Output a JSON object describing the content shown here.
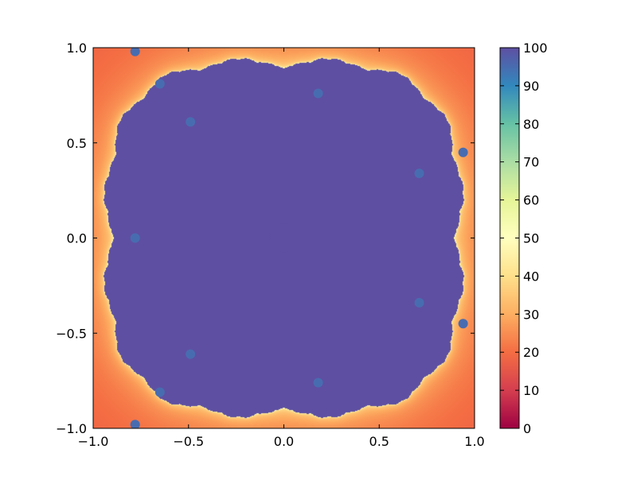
{
  "chart_data": {
    "type": "heatmap",
    "title": "",
    "xlabel": "",
    "ylabel": "",
    "xlim": [
      -1.0,
      1.0
    ],
    "ylim": [
      -1.0,
      1.0
    ],
    "xticks": [
      -1.0,
      -0.5,
      0.0,
      0.5,
      1.0
    ],
    "yticks": [
      -1.0,
      -0.5,
      0.0,
      0.5,
      1.0
    ],
    "xtick_labels": [
      "−1.0",
      "−0.5",
      "0.0",
      "0.5",
      "1.0"
    ],
    "ytick_labels": [
      "−1.0",
      "−0.5",
      "0.0",
      "0.5",
      "1.0"
    ],
    "grid": false,
    "colormap": "Spectral",
    "colorbar": {
      "min": 0,
      "max": 100,
      "ticks": [
        0,
        10,
        20,
        30,
        40,
        50,
        60,
        70,
        80,
        90,
        100
      ],
      "tick_labels": [
        "0",
        "10",
        "20",
        "30",
        "40",
        "50",
        "60",
        "70",
        "80",
        "90",
        "100"
      ],
      "colors": [
        "#9e0142",
        "#d53e4f",
        "#f46d43",
        "#fdae61",
        "#fee08b",
        "#ffffbf",
        "#e6f598",
        "#abdda4",
        "#66c2a5",
        "#3288bd",
        "#5e4fa2"
      ]
    },
    "description_values": {
      "background_iteration_level": 8,
      "spiral_centers": [
        {
          "x": 0.0,
          "y": 0.0,
          "value": 100
        },
        {
          "x": 0.71,
          "y": 0.34,
          "value": 95
        },
        {
          "x": 0.71,
          "y": -0.34,
          "value": 95
        },
        {
          "x": 0.18,
          "y": 0.76,
          "value": 95
        },
        {
          "x": 0.18,
          "y": -0.76,
          "value": 95
        },
        {
          "x": -0.49,
          "y": 0.61,
          "value": 95
        },
        {
          "x": -0.49,
          "y": -0.61,
          "value": 95
        },
        {
          "x": -0.78,
          "y": 0.0,
          "value": 95
        },
        {
          "x": 0.94,
          "y": 0.45,
          "value": 95
        },
        {
          "x": 0.94,
          "y": -0.45,
          "value": 95
        },
        {
          "x": -0.65,
          "y": 0.81,
          "value": 95
        },
        {
          "x": -0.65,
          "y": -0.81,
          "value": 95
        },
        {
          "x": -0.78,
          "y": 0.98,
          "value": 95
        },
        {
          "x": -0.78,
          "y": -0.98,
          "value": 95
        }
      ]
    }
  }
}
